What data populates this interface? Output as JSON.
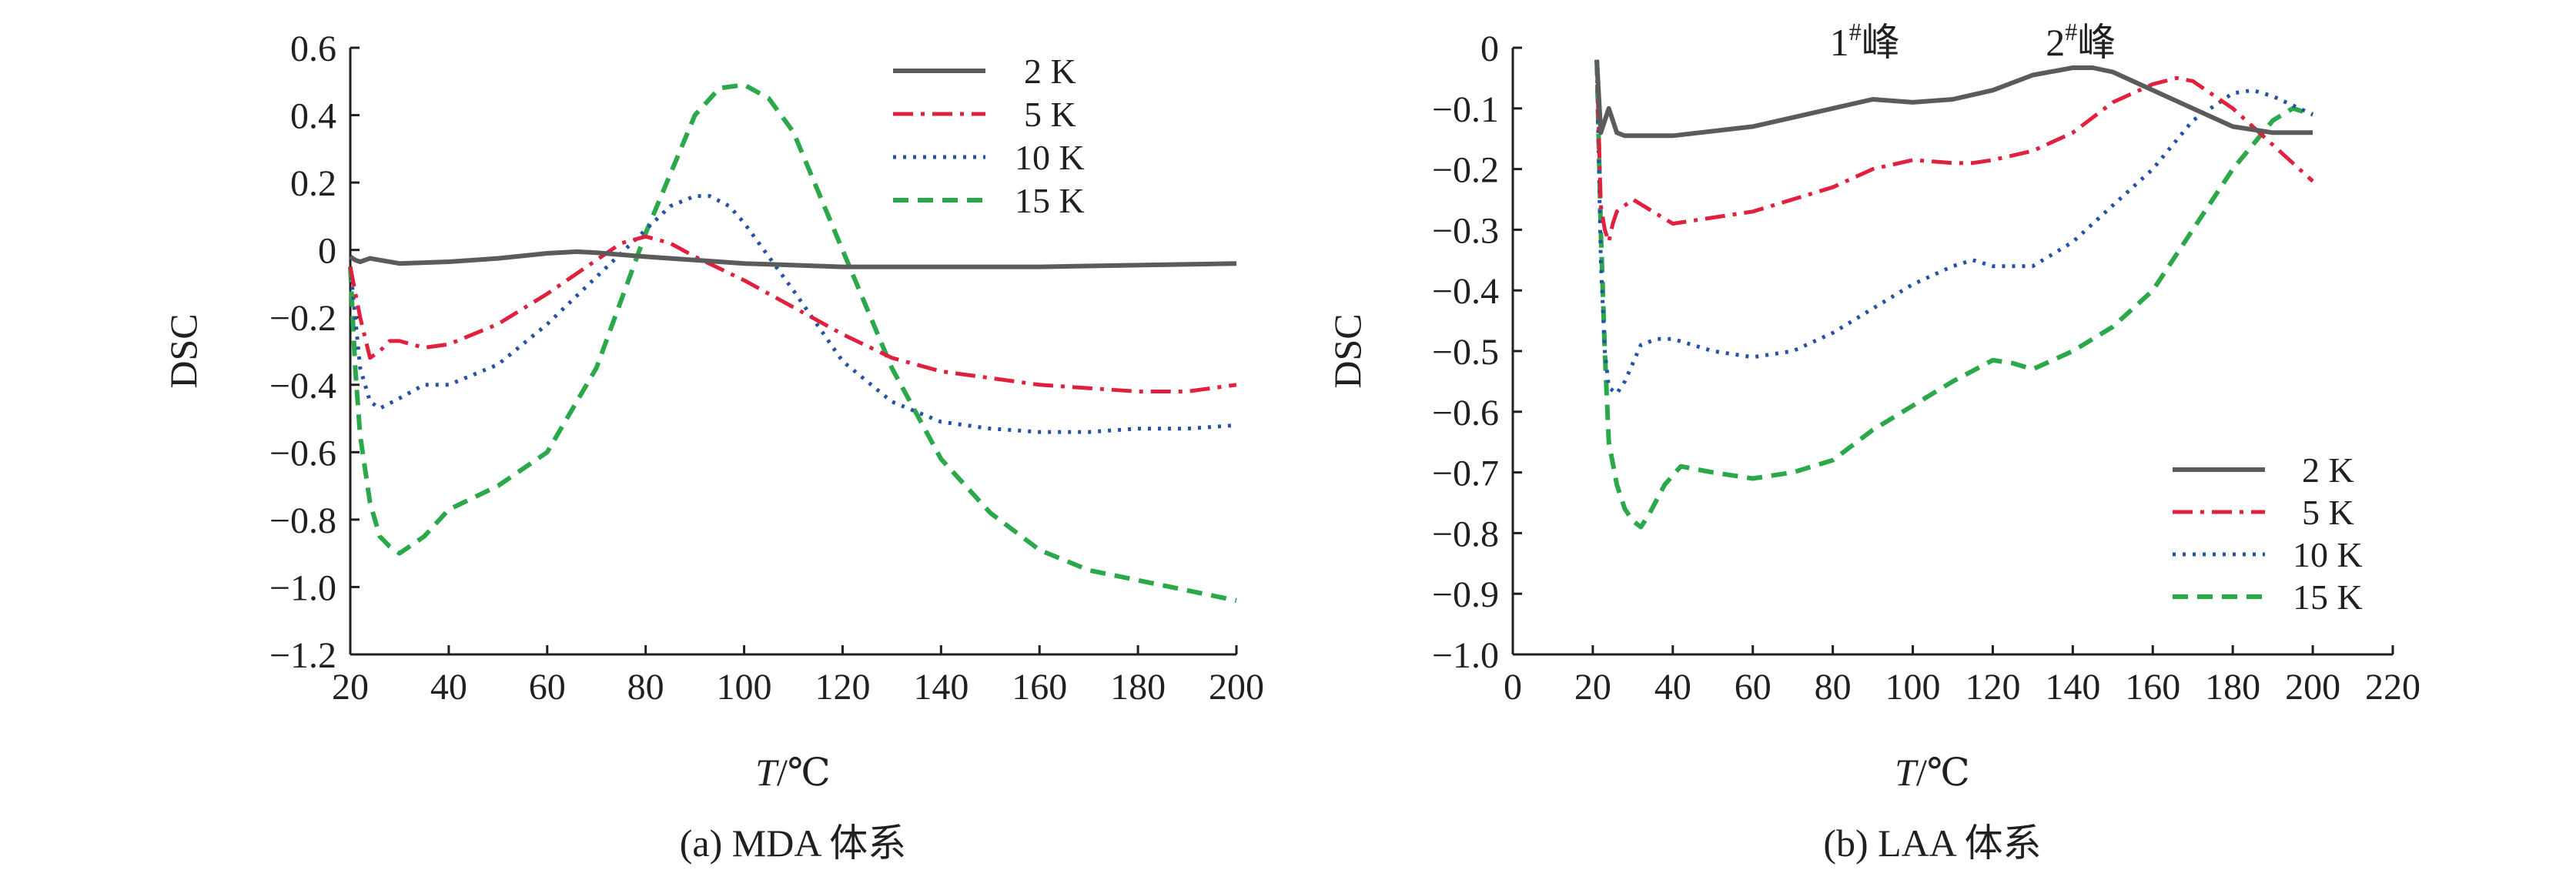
{
  "panels": [
    {
      "caption": "(a) MDA 体系",
      "xlabel_italic": "T",
      "xlabel_rest": "/℃",
      "ylabel": "DSC",
      "legend_position": "top-right",
      "annotations": []
    },
    {
      "caption": "(b) LAA 体系",
      "xlabel_italic": "T",
      "xlabel_rest": "/℃",
      "ylabel": "DSC",
      "legend_position": "bottom-right",
      "annotations": [
        {
          "base": "1",
          "sup": "#",
          "rest": "峰",
          "x": 88,
          "y": 0
        },
        {
          "base": "2",
          "sup": "#",
          "rest": "峰",
          "x": 142,
          "y": 0
        }
      ]
    }
  ],
  "series_styles": [
    {
      "name": "2 K",
      "color": "#5b5b5b",
      "dash": "none",
      "width": 6
    },
    {
      "name": "5 K",
      "color": "#e0203c",
      "dash": "26 10 5 10",
      "width": 5
    },
    {
      "name": "10 K",
      "color": "#2453a6",
      "dash": "4 9",
      "width": 5
    },
    {
      "name": "15 K",
      "color": "#2aa84a",
      "dash": "20 12",
      "width": 6
    }
  ],
  "chart_data": [
    {
      "type": "line",
      "title": "",
      "xlabel": "T/℃",
      "ylabel": "DSC",
      "xlim": [
        20,
        200
      ],
      "ylim": [
        -1.2,
        0.6
      ],
      "xticks": [
        20,
        40,
        60,
        80,
        100,
        120,
        140,
        160,
        180,
        200
      ],
      "xtick_labels": [
        "20",
        "40",
        "60",
        "80",
        "100",
        "120",
        "140",
        "160",
        "180",
        "200"
      ],
      "yticks": [
        0.6,
        0.4,
        0.2,
        0,
        -0.2,
        -0.4,
        -0.6,
        -0.8,
        -1.0,
        -1.2
      ],
      "ytick_labels": [
        "0.6",
        "0.4",
        "0.2",
        "0",
        "−0.2",
        "−0.4",
        "−0.6",
        "−0.8",
        "−1.0",
        "−1.2"
      ],
      "grid": false,
      "legend_position": "top-right",
      "series": [
        {
          "name": "2 K",
          "x": [
            20,
            21,
            22,
            23,
            24,
            26,
            30,
            40,
            50,
            60,
            66,
            70,
            80,
            90,
            100,
            110,
            120,
            140,
            160,
            180,
            200
          ],
          "y": [
            -0.02,
            -0.03,
            -0.035,
            -0.03,
            -0.025,
            -0.03,
            -0.04,
            -0.035,
            -0.025,
            -0.01,
            -0.005,
            -0.008,
            -0.02,
            -0.03,
            -0.04,
            -0.045,
            -0.05,
            -0.05,
            -0.05,
            -0.045,
            -0.04
          ]
        },
        {
          "name": "5 K",
          "x": [
            20,
            22,
            24,
            26,
            28,
            30,
            35,
            40,
            50,
            60,
            70,
            75,
            80,
            85,
            90,
            100,
            110,
            120,
            130,
            140,
            150,
            160,
            170,
            180,
            190,
            200
          ],
          "y": [
            -0.05,
            -0.2,
            -0.32,
            -0.3,
            -0.27,
            -0.27,
            -0.29,
            -0.28,
            -0.22,
            -0.13,
            -0.03,
            0.02,
            0.04,
            0.02,
            -0.02,
            -0.09,
            -0.17,
            -0.25,
            -0.32,
            -0.36,
            -0.38,
            -0.4,
            -0.41,
            -0.42,
            -0.42,
            -0.4
          ]
        },
        {
          "name": "10 K",
          "x": [
            20,
            22,
            24,
            26,
            30,
            35,
            40,
            50,
            60,
            70,
            80,
            85,
            90,
            93,
            97,
            100,
            110,
            120,
            130,
            140,
            150,
            160,
            170,
            180,
            190,
            200
          ],
          "y": [
            -0.05,
            -0.35,
            -0.45,
            -0.47,
            -0.44,
            -0.4,
            -0.4,
            -0.34,
            -0.22,
            -0.08,
            0.06,
            0.13,
            0.16,
            0.16,
            0.13,
            0.08,
            -0.12,
            -0.33,
            -0.45,
            -0.51,
            -0.53,
            -0.54,
            -0.54,
            -0.53,
            -0.53,
            -0.52
          ]
        },
        {
          "name": "15 K",
          "x": [
            20,
            21,
            22,
            24,
            26,
            28,
            30,
            35,
            40,
            50,
            60,
            70,
            80,
            90,
            95,
            100,
            105,
            110,
            120,
            130,
            140,
            150,
            160,
            170,
            180,
            190,
            200
          ],
          "y": [
            -0.05,
            -0.35,
            -0.55,
            -0.75,
            -0.85,
            -0.88,
            -0.9,
            -0.85,
            -0.77,
            -0.7,
            -0.6,
            -0.35,
            0.05,
            0.4,
            0.48,
            0.49,
            0.45,
            0.35,
            0.0,
            -0.35,
            -0.62,
            -0.78,
            -0.89,
            -0.95,
            -0.98,
            -1.01,
            -1.04
          ]
        }
      ]
    },
    {
      "type": "line",
      "title": "",
      "xlabel": "T/℃",
      "ylabel": "DSC",
      "xlim": [
        0,
        220
      ],
      "ylim": [
        -1.0,
        0
      ],
      "xticks": [
        0,
        20,
        40,
        60,
        80,
        100,
        120,
        140,
        160,
        180,
        200,
        220
      ],
      "xtick_labels": [
        "0",
        "20",
        "40",
        "60",
        "80",
        "100",
        "120",
        "140",
        "160",
        "180",
        "200",
        "220"
      ],
      "yticks": [
        0,
        -0.1,
        -0.2,
        -0.3,
        -0.4,
        -0.5,
        -0.6,
        -0.7,
        -0.8,
        -0.9,
        -1.0
      ],
      "ytick_labels": [
        "0",
        "−0.1",
        "−0.2",
        "−0.3",
        "−0.4",
        "−0.5",
        "−0.6",
        "−0.7",
        "−0.8",
        "−0.9",
        "−1.0"
      ],
      "grid": false,
      "legend_position": "bottom-right",
      "series": [
        {
          "name": "2 K",
          "x": [
            21,
            22,
            23,
            24,
            25,
            26,
            28,
            30,
            40,
            60,
            80,
            90,
            100,
            110,
            120,
            130,
            140,
            145,
            150,
            160,
            170,
            180,
            190,
            200
          ],
          "y": [
            -0.02,
            -0.14,
            -0.12,
            -0.1,
            -0.12,
            -0.14,
            -0.145,
            -0.145,
            -0.145,
            -0.13,
            -0.1,
            -0.085,
            -0.09,
            -0.085,
            -0.07,
            -0.045,
            -0.033,
            -0.033,
            -0.04,
            -0.07,
            -0.1,
            -0.13,
            -0.14,
            -0.14
          ]
        },
        {
          "name": "5 K",
          "x": [
            21,
            22,
            23,
            24,
            25,
            26,
            28,
            30,
            40,
            60,
            80,
            90,
            100,
            110,
            115,
            120,
            130,
            140,
            150,
            160,
            166,
            170,
            180,
            190,
            200
          ],
          "y": [
            -0.02,
            -0.26,
            -0.3,
            -0.32,
            -0.29,
            -0.27,
            -0.26,
            -0.25,
            -0.29,
            -0.27,
            -0.23,
            -0.2,
            -0.185,
            -0.19,
            -0.19,
            -0.185,
            -0.17,
            -0.14,
            -0.09,
            -0.06,
            -0.05,
            -0.055,
            -0.1,
            -0.16,
            -0.22
          ]
        },
        {
          "name": "10 K",
          "x": [
            21,
            22,
            23,
            24,
            26,
            28,
            30,
            32,
            36,
            40,
            50,
            60,
            70,
            80,
            90,
            100,
            110,
            115,
            120,
            125,
            130,
            140,
            150,
            160,
            170,
            180,
            185,
            190,
            200
          ],
          "y": [
            -0.02,
            -0.35,
            -0.5,
            -0.56,
            -0.57,
            -0.55,
            -0.52,
            -0.49,
            -0.48,
            -0.48,
            -0.5,
            -0.51,
            -0.5,
            -0.47,
            -0.43,
            -0.39,
            -0.36,
            -0.35,
            -0.36,
            -0.36,
            -0.36,
            -0.32,
            -0.26,
            -0.2,
            -0.12,
            -0.075,
            -0.07,
            -0.08,
            -0.11
          ]
        },
        {
          "name": "15 K",
          "x": [
            21,
            22,
            23,
            24,
            26,
            28,
            30,
            32,
            34,
            38,
            42,
            50,
            60,
            70,
            80,
            90,
            100,
            110,
            120,
            125,
            130,
            140,
            150,
            160,
            170,
            180,
            190,
            195,
            200
          ],
          "y": [
            -0.02,
            -0.3,
            -0.5,
            -0.65,
            -0.72,
            -0.76,
            -0.78,
            -0.79,
            -0.77,
            -0.72,
            -0.69,
            -0.7,
            -0.71,
            -0.7,
            -0.68,
            -0.63,
            -0.59,
            -0.55,
            -0.515,
            -0.52,
            -0.53,
            -0.5,
            -0.46,
            -0.4,
            -0.3,
            -0.2,
            -0.12,
            -0.1,
            -0.11
          ]
        }
      ]
    }
  ]
}
